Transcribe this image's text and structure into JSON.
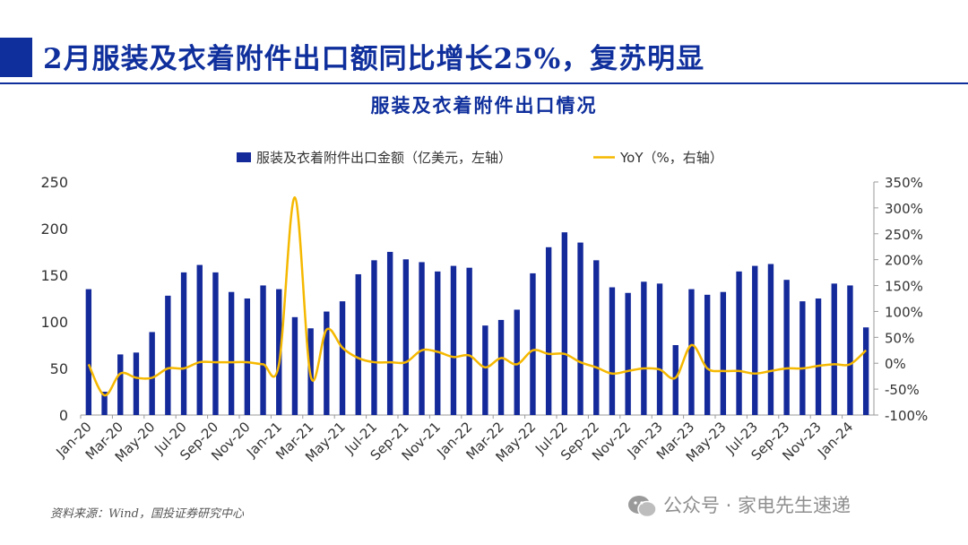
{
  "header": {
    "title": "2月服装及衣着附件出口额同比增长25%，复苏明显"
  },
  "footer": {
    "source": "资料来源：Wind，国投证券研究中心",
    "watermark": "公众号 · 家电先生速递",
    "watermark_icon": "wechat-icon"
  },
  "colors": {
    "bar": "#14299a",
    "line": "#f5b800",
    "title": "#0f2f9c"
  },
  "chart_data": {
    "type": "bar",
    "title": "服装及衣着附件出口情况",
    "categories": [
      "Jan-20",
      "Feb-20",
      "Mar-20",
      "Apr-20",
      "May-20",
      "Jun-20",
      "Jul-20",
      "Aug-20",
      "Sep-20",
      "Oct-20",
      "Nov-20",
      "Dec-20",
      "Jan-21",
      "Feb-21",
      "Mar-21",
      "Apr-21",
      "May-21",
      "Jun-21",
      "Jul-21",
      "Aug-21",
      "Sep-21",
      "Oct-21",
      "Nov-21",
      "Dec-21",
      "Jan-22",
      "Feb-22",
      "Mar-22",
      "Apr-22",
      "May-22",
      "Jun-22",
      "Jul-22",
      "Aug-22",
      "Sep-22",
      "Oct-22",
      "Nov-22",
      "Dec-22",
      "Jan-23",
      "Feb-23",
      "Mar-23",
      "Apr-23",
      "May-23",
      "Jun-23",
      "Jul-23",
      "Aug-23",
      "Sep-23",
      "Oct-23",
      "Nov-23",
      "Dec-23",
      "Jan-24",
      "Feb-24"
    ],
    "xtick_labels": [
      "Jan-20",
      "Mar-20",
      "May-20",
      "Jul-20",
      "Sep-20",
      "Nov-20",
      "Jan-21",
      "Mar-21",
      "May-21",
      "Jul-21",
      "Sep-21",
      "Nov-21",
      "Jan-22",
      "Mar-22",
      "May-22",
      "Jul-22",
      "Sep-22",
      "Nov-22",
      "Jan-23",
      "Mar-23",
      "May-23",
      "Jul-23",
      "Sep-23",
      "Nov-23",
      "Jan-24"
    ],
    "series": [
      {
        "name": "服装及衣着附件出口金额（亿美元，左轴）",
        "type": "bar",
        "axis": "left",
        "values": [
          135,
          25,
          65,
          67,
          89,
          128,
          153,
          161,
          153,
          132,
          125,
          139,
          135,
          105,
          93,
          111,
          122,
          151,
          166,
          175,
          167,
          164,
          154,
          160,
          158,
          96,
          102,
          113,
          152,
          180,
          196,
          185,
          166,
          137,
          131,
          143,
          141,
          75,
          135,
          129,
          132,
          154,
          160,
          162,
          145,
          122,
          125,
          141,
          139,
          94
        ]
      },
      {
        "name": "YoY（%，右轴）",
        "type": "line",
        "axis": "right",
        "values": [
          -2,
          -62,
          -20,
          -28,
          -28,
          -10,
          -10,
          2,
          2,
          2,
          2,
          -2,
          -2,
          320,
          -25,
          65,
          30,
          10,
          2,
          2,
          2,
          25,
          22,
          12,
          15,
          -8,
          10,
          -2,
          25,
          18,
          18,
          2,
          -8,
          -20,
          -15,
          -10,
          -12,
          -28,
          35,
          -10,
          -15,
          -15,
          -20,
          -15,
          -10,
          -10,
          -5,
          -2,
          -2,
          25
        ]
      }
    ],
    "y_left": {
      "min": 0,
      "max": 250,
      "ticks": [
        0,
        50,
        100,
        150,
        200,
        250
      ]
    },
    "y_right": {
      "min": -100,
      "max": 350,
      "ticks": [
        -100,
        -50,
        0,
        50,
        100,
        150,
        200,
        250,
        300,
        350
      ],
      "tick_labels": [
        "-100%",
        "-50%",
        "0%",
        "50%",
        "100%",
        "150%",
        "200%",
        "250%",
        "300%",
        "350%"
      ]
    },
    "legend_position": "top-center",
    "grid": false
  }
}
